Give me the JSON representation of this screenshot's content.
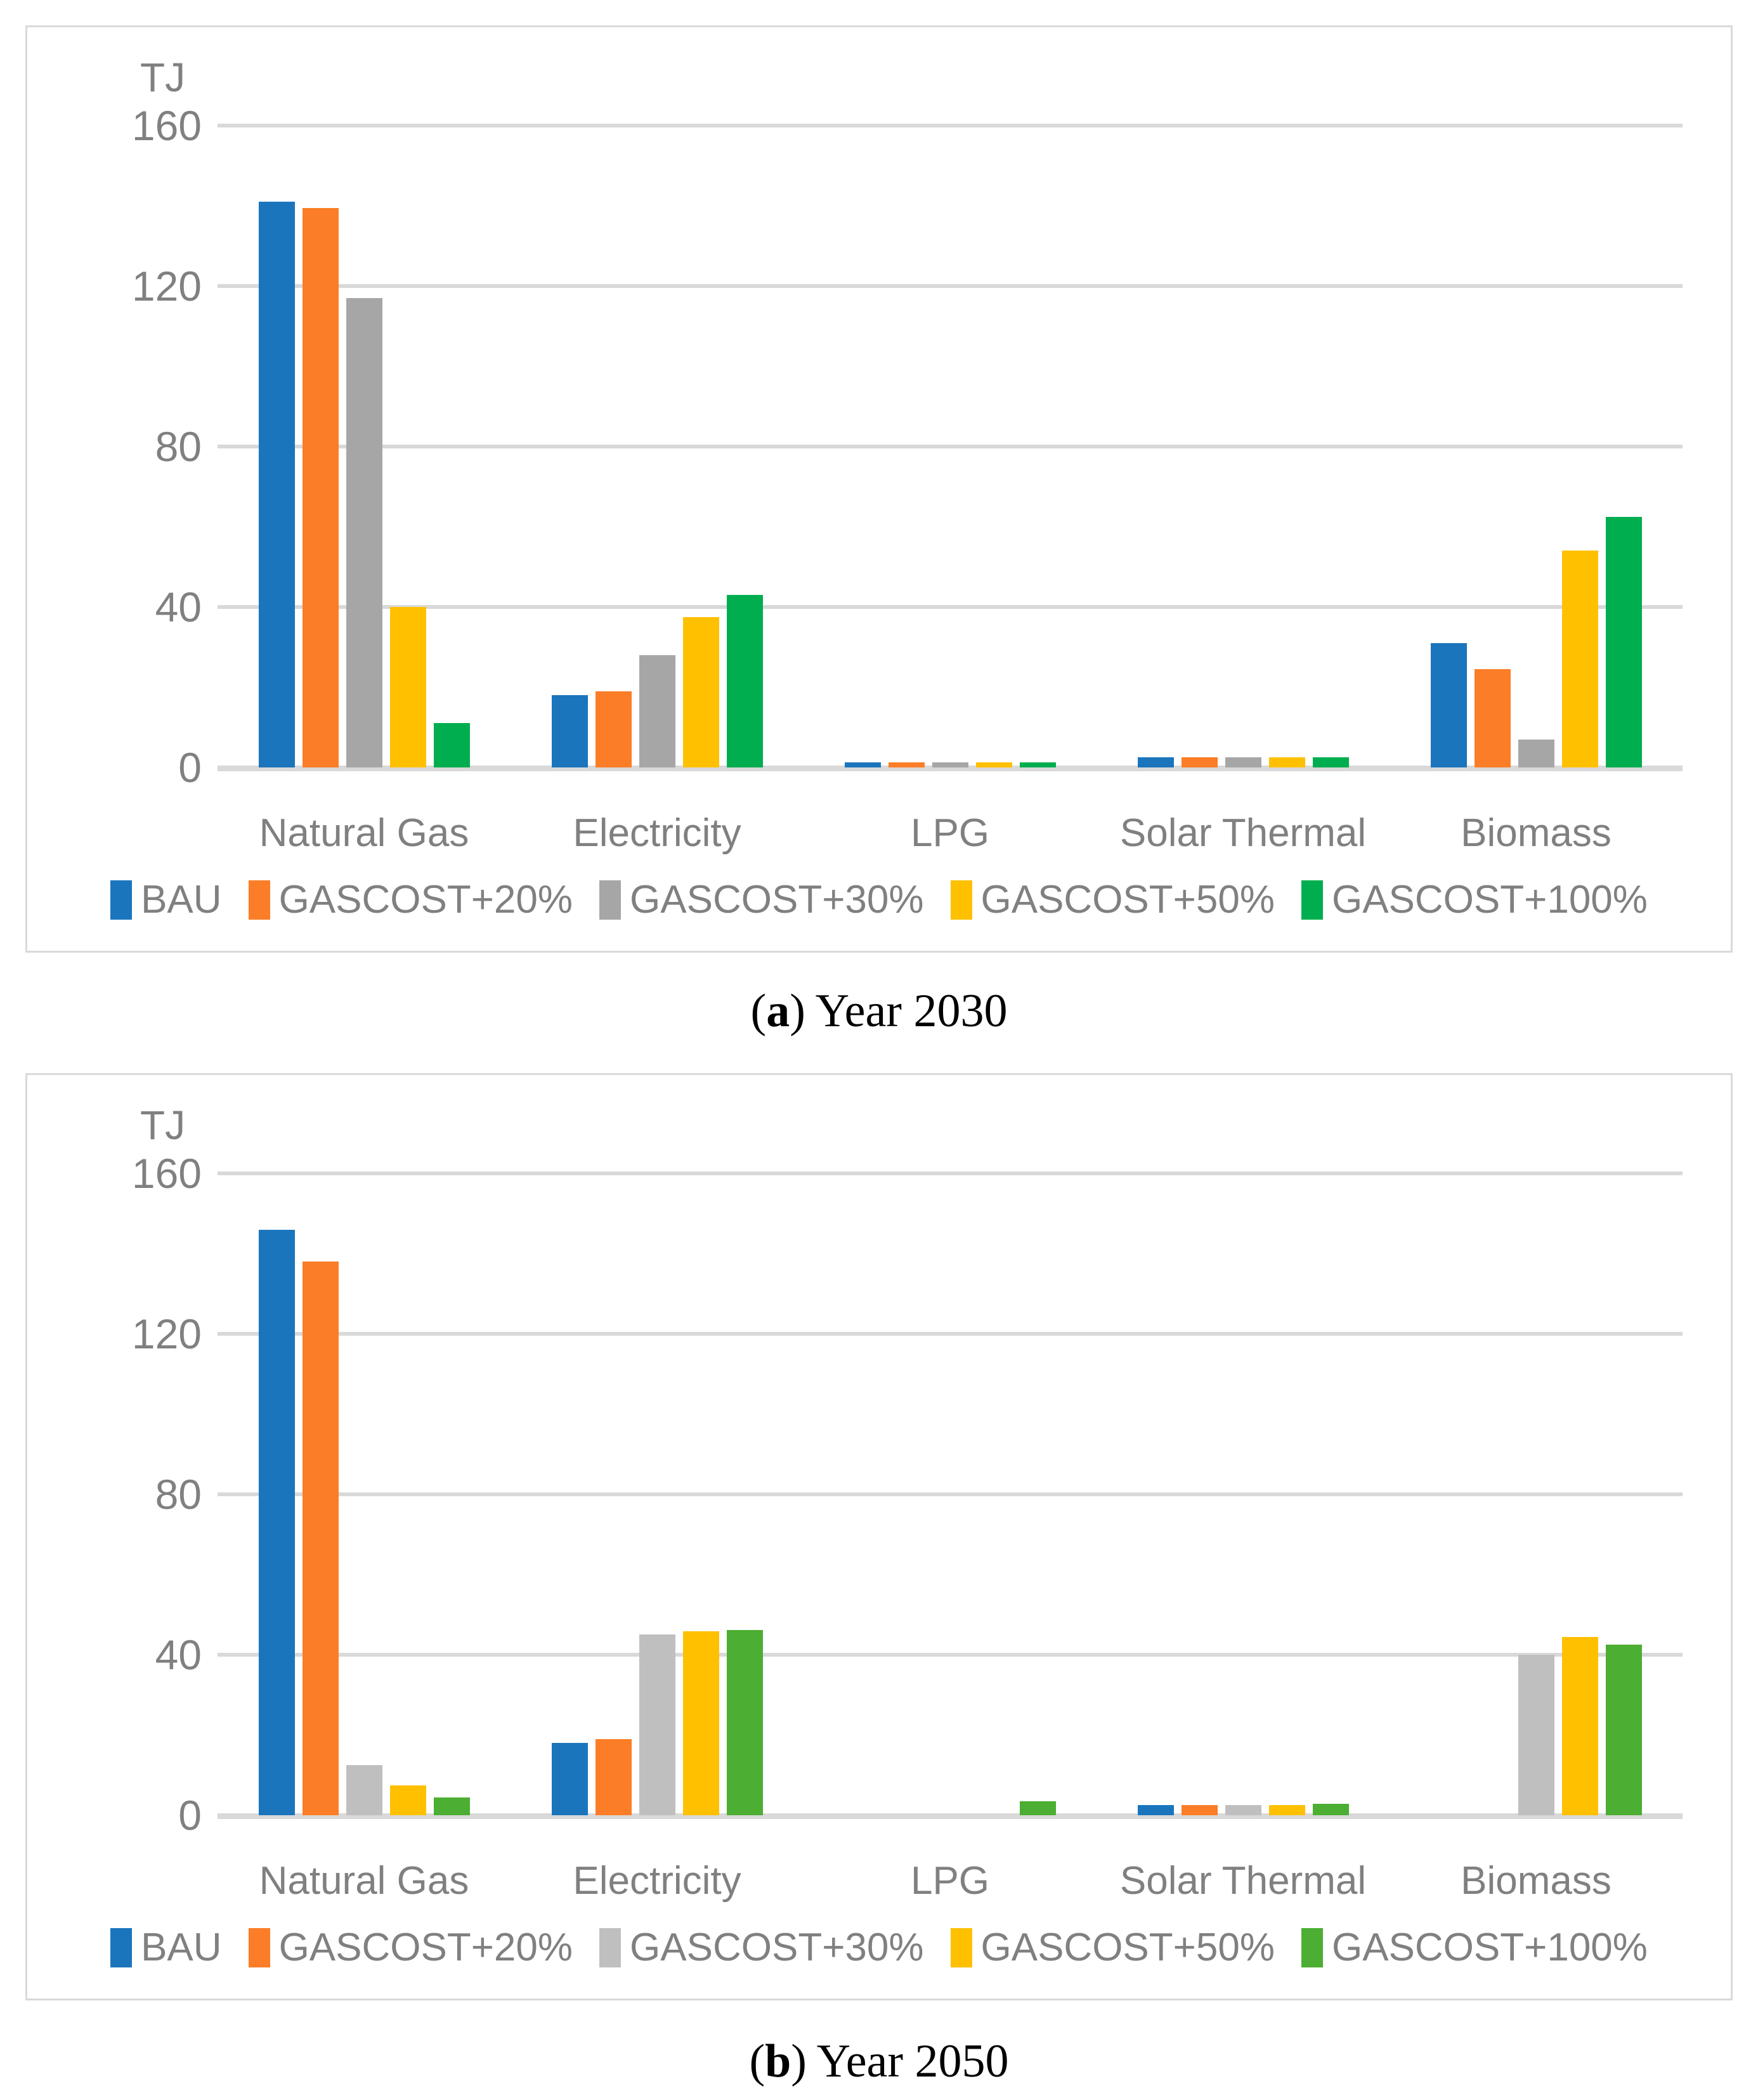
{
  "chart_data": [
    {
      "type": "bar",
      "title": "(a) Year 2030",
      "caption": {
        "prefix": "(",
        "bold_letter": "a",
        "suffix": ") Year 2030"
      },
      "unit": "TJ",
      "ylabel": "TJ",
      "ylim": [
        0,
        160
      ],
      "y_ticks": [
        160,
        120,
        80,
        40,
        0
      ],
      "grid": true,
      "legend_position": "bottom",
      "categories": [
        "Natural Gas",
        "Electricity",
        "LPG",
        "Solar Thermal",
        "Biomass"
      ],
      "series": [
        {
          "name": "BAU",
          "color": "#1B75BC",
          "values": [
            141,
            18,
            1.2,
            2.5,
            31
          ]
        },
        {
          "name": "GASCOST+20%",
          "color": "#FB7D27",
          "values": [
            139.5,
            19,
            1.2,
            2.5,
            24.5
          ]
        },
        {
          "name": "GASCOST+30%",
          "color": "#A6A6A6",
          "values": [
            117,
            28,
            1.2,
            2.5,
            7
          ]
        },
        {
          "name": "GASCOST+50%",
          "color": "#FFC000",
          "values": [
            40,
            37.5,
            1.2,
            2.5,
            54
          ]
        },
        {
          "name": "GASCOST+100%",
          "color": "#00AE50",
          "values": [
            11,
            43,
            1.2,
            2.5,
            62.5
          ]
        }
      ]
    },
    {
      "type": "bar",
      "title": "(b) Year 2050",
      "caption": {
        "prefix": "(",
        "bold_letter": "b",
        "suffix": ") Year 2050"
      },
      "unit": "TJ",
      "ylabel": "TJ",
      "ylim": [
        0,
        160
      ],
      "y_ticks": [
        160,
        120,
        80,
        40,
        0
      ],
      "grid": true,
      "legend_position": "bottom",
      "categories": [
        "Natural Gas",
        "Electricity",
        "LPG",
        "Solar Thermal",
        "Biomass"
      ],
      "series": [
        {
          "name": "BAU",
          "color": "#1B75BC",
          "values": [
            146,
            18,
            0,
            2.5,
            0
          ]
        },
        {
          "name": "GASCOST+20%",
          "color": "#FB7D27",
          "values": [
            138,
            19,
            0,
            2.5,
            0
          ]
        },
        {
          "name": "GASCOST+30%",
          "color": "#BFBFBF",
          "values": [
            12.5,
            45,
            0,
            2.5,
            40
          ]
        },
        {
          "name": "GASCOST+50%",
          "color": "#FFC000",
          "values": [
            7.5,
            45.8,
            0,
            2.5,
            44.5
          ]
        },
        {
          "name": "GASCOST+100%",
          "color": "#4CAE32",
          "values": [
            4.5,
            46.2,
            3.5,
            2.8,
            42.5
          ]
        }
      ]
    }
  ]
}
